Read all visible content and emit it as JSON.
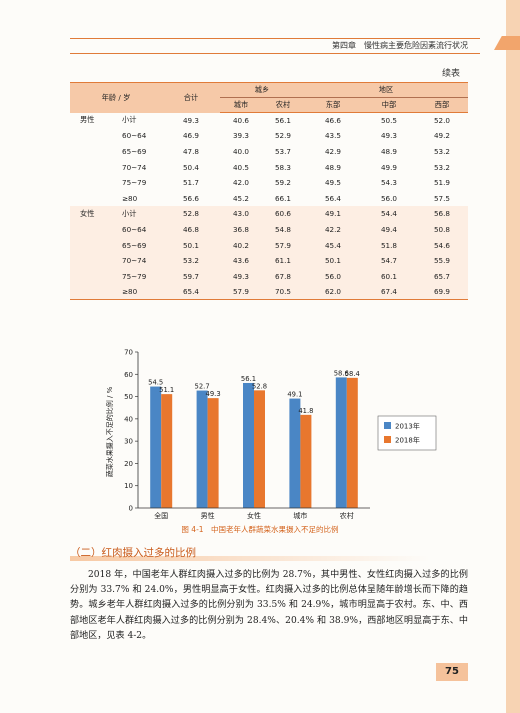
{
  "running_head": "第四章　慢性病主要危险因素流行状况",
  "continued_label": "续表",
  "table": {
    "headers": {
      "age": "年龄 / 岁",
      "total": "合计",
      "urban_rural": "城乡",
      "region": "地区",
      "city": "城市",
      "rural": "农村",
      "east": "东部",
      "central": "中部",
      "west": "西部"
    },
    "male": {
      "label": "男性",
      "rows": [
        {
          "age": "小计",
          "total": "49.3",
          "city": "40.6",
          "rural": "56.1",
          "east": "46.6",
          "central": "50.5",
          "west": "52.0"
        },
        {
          "age": "60~64",
          "total": "46.9",
          "city": "39.3",
          "rural": "52.9",
          "east": "43.5",
          "central": "49.3",
          "west": "49.2"
        },
        {
          "age": "65~69",
          "total": "47.8",
          "city": "40.0",
          "rural": "53.7",
          "east": "42.9",
          "central": "48.9",
          "west": "53.2"
        },
        {
          "age": "70~74",
          "total": "50.4",
          "city": "40.5",
          "rural": "58.3",
          "east": "48.9",
          "central": "49.9",
          "west": "53.2"
        },
        {
          "age": "75~79",
          "total": "51.7",
          "city": "42.0",
          "rural": "59.2",
          "east": "49.5",
          "central": "54.3",
          "west": "51.9"
        },
        {
          "age": "≥80",
          "total": "56.6",
          "city": "45.2",
          "rural": "66.1",
          "east": "56.4",
          "central": "56.0",
          "west": "57.5"
        }
      ]
    },
    "female": {
      "label": "女性",
      "rows": [
        {
          "age": "小计",
          "total": "52.8",
          "city": "43.0",
          "rural": "60.6",
          "east": "49.1",
          "central": "54.4",
          "west": "56.8"
        },
        {
          "age": "60~64",
          "total": "46.8",
          "city": "36.8",
          "rural": "54.8",
          "east": "42.2",
          "central": "49.4",
          "west": "50.8"
        },
        {
          "age": "65~69",
          "total": "50.1",
          "city": "40.2",
          "rural": "57.9",
          "east": "45.4",
          "central": "51.8",
          "west": "54.6"
        },
        {
          "age": "70~74",
          "total": "53.2",
          "city": "43.6",
          "rural": "61.1",
          "east": "50.1",
          "central": "54.7",
          "west": "55.9"
        },
        {
          "age": "75~79",
          "total": "59.7",
          "city": "49.3",
          "rural": "67.8",
          "east": "56.0",
          "central": "60.1",
          "west": "65.7"
        },
        {
          "age": "≥80",
          "total": "65.4",
          "city": "57.9",
          "rural": "70.5",
          "east": "62.0",
          "central": "67.4",
          "west": "69.9"
        }
      ]
    }
  },
  "chart_data": {
    "type": "bar",
    "categories": [
      "全国",
      "男性",
      "女性",
      "城市",
      "农村"
    ],
    "series": [
      {
        "name": "2013年",
        "values": [
          54.5,
          52.7,
          56.1,
          49.1,
          58.6
        ],
        "color": "#4a86c5"
      },
      {
        "name": "2018年",
        "values": [
          51.1,
          49.3,
          52.8,
          41.8,
          58.4
        ],
        "color": "#e8772e"
      }
    ],
    "ylabel": "蔬菜水果摄入不足的比例 / %",
    "ylim": [
      0,
      70
    ],
    "yticks": [
      0,
      10,
      20,
      30,
      40,
      50,
      60,
      70
    ],
    "legend_position": "right",
    "grid": false
  },
  "figure_caption": "图 4-1　中国老年人群蔬菜水果摄入不足的比例",
  "section_title": "（二）红肉摄入过多的比例",
  "paragraph": "2018 年，中国老年人群红肉摄入过多的比例为 28.7%，其中男性、女性红肉摄入过多的比例分别为 33.7% 和 24.0%，男性明显高于女性。红肉摄入过多的比例总体呈随年龄增长而下降的趋势。城乡老年人群红肉摄入过多的比例分别为 33.5% 和 24.9%，城市明显高于农村。东、中、西部地区老年人群红肉摄入过多的比例分别为 28.4%、20.4% 和 38.9%，西部地区明显高于东、中部地区，见表 4-2。",
  "page_number": "75"
}
